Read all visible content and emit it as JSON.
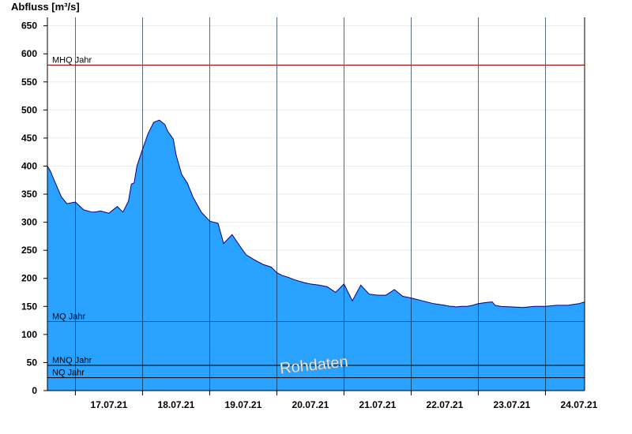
{
  "chart_data": {
    "type": "area",
    "ylabel": "Abfluss [m³/s]",
    "ylim": [
      0,
      665
    ],
    "yticks": [
      0,
      50,
      100,
      150,
      200,
      250,
      300,
      350,
      400,
      450,
      500,
      550,
      600,
      650
    ],
    "xlim": [
      "2021-07-16T14:00",
      "2021-07-24T14:00"
    ],
    "xtick_labels": [
      "17.07.21",
      "18.07.21",
      "19.07.21",
      "20.07.21",
      "21.07.21",
      "22.07.21",
      "23.07.21",
      "24.07.21"
    ],
    "grid": true,
    "colors": {
      "area_fill": "#29a3ff",
      "area_line": "#00008b",
      "MHQ": "#a00000",
      "MQ": "#008000",
      "MNQ": "#000000",
      "NQ": "#000000"
    },
    "reference_lines": [
      {
        "name": "MHQ Jahr",
        "value": 580
      },
      {
        "name": "MQ Jahr",
        "value": 123
      },
      {
        "name": "MNQ Jahr",
        "value": 45
      },
      {
        "name": "NQ Jahr",
        "value": 23
      }
    ],
    "watermark": "Rohdaten",
    "series": [
      {
        "x": [
          "2021-07-16T14:00",
          "2021-07-16T15:00",
          "2021-07-16T17:00",
          "2021-07-16T19:00",
          "2021-07-16T21:00",
          "2021-07-17T00:00",
          "2021-07-17T03:00",
          "2021-07-17T06:00",
          "2021-07-17T07:00",
          "2021-07-17T09:00",
          "2021-07-17T12:00",
          "2021-07-17T15:00",
          "2021-07-17T17:00",
          "2021-07-17T19:00",
          "2021-07-17T20:00",
          "2021-07-17T21:00",
          "2021-07-17T22:00",
          "2021-07-18T00:00",
          "2021-07-18T02:00",
          "2021-07-18T04:00",
          "2021-07-18T06:00",
          "2021-07-18T08:00",
          "2021-07-18T09:00",
          "2021-07-18T11:00",
          "2021-07-18T12:00",
          "2021-07-18T14:00",
          "2021-07-18T16:00",
          "2021-07-18T18:00",
          "2021-07-18T21:00",
          "2021-07-19T00:00",
          "2021-07-19T03:00",
          "2021-07-19T05:00",
          "2021-07-19T08:00",
          "2021-07-19T11:00",
          "2021-07-19T13:00",
          "2021-07-19T16:00",
          "2021-07-19T19:00",
          "2021-07-19T22:00",
          "2021-07-20T00:00",
          "2021-07-20T02:00",
          "2021-07-20T04:00",
          "2021-07-20T06:00",
          "2021-07-20T08:00",
          "2021-07-20T10:00",
          "2021-07-20T12:00",
          "2021-07-20T15:00",
          "2021-07-20T18:00",
          "2021-07-20T21:00",
          "2021-07-21T00:00",
          "2021-07-21T03:00",
          "2021-07-21T06:00",
          "2021-07-21T09:00",
          "2021-07-21T12:00",
          "2021-07-21T15:00",
          "2021-07-21T18:00",
          "2021-07-21T21:00",
          "2021-07-22T00:00",
          "2021-07-22T04:00",
          "2021-07-22T08:00",
          "2021-07-22T12:00",
          "2021-07-22T14:00",
          "2021-07-22T15:00",
          "2021-07-22T16:00",
          "2021-07-22T18:00",
          "2021-07-22T19:00",
          "2021-07-22T20:00",
          "2021-07-22T22:00",
          "2021-07-23T00:00",
          "2021-07-23T03:00",
          "2021-07-23T05:00",
          "2021-07-23T06:00",
          "2021-07-23T08:00",
          "2021-07-23T12:00",
          "2021-07-23T16:00",
          "2021-07-23T20:00",
          "2021-07-24T00:00",
          "2021-07-24T04:00",
          "2021-07-24T08:00",
          "2021-07-24T12:00",
          "2021-07-24T14:00"
        ],
        "values": [
          400,
          392,
          368,
          345,
          333,
          336,
          322,
          318,
          318,
          320,
          316,
          328,
          318,
          338,
          368,
          370,
          400,
          430,
          458,
          478,
          482,
          474,
          462,
          448,
          420,
          385,
          370,
          345,
          318,
          302,
          298,
          262,
          278,
          256,
          242,
          233,
          225,
          220,
          210,
          205,
          202,
          198,
          195,
          192,
          190,
          188,
          185,
          175,
          190,
          160,
          188,
          172,
          170,
          170,
          180,
          168,
          165,
          160,
          155,
          152,
          150,
          150,
          149,
          150,
          150,
          150,
          152,
          155,
          157,
          158,
          152,
          150,
          149,
          148,
          150,
          150,
          152,
          152,
          155,
          158
        ]
      }
    ]
  }
}
